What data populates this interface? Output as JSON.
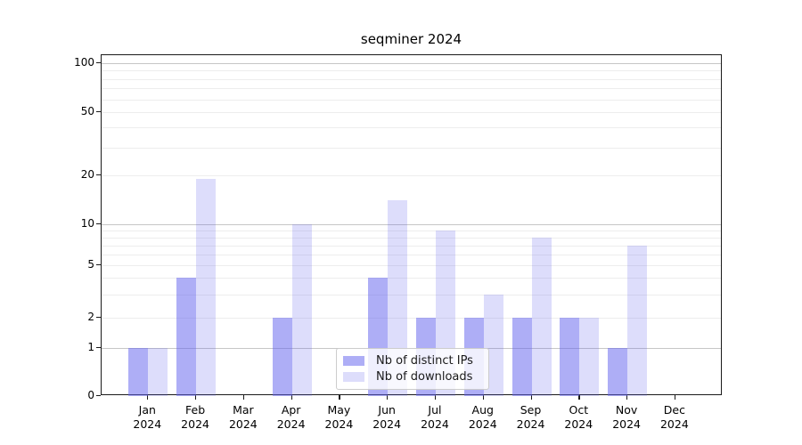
{
  "title": "seqminer 2024",
  "chart_data": {
    "type": "bar",
    "title": "seqminer 2024",
    "categories": [
      "Jan 2024",
      "Feb 2024",
      "Mar 2024",
      "Apr 2024",
      "May 2024",
      "Jun 2024",
      "Jul 2024",
      "Aug 2024",
      "Sep 2024",
      "Oct 2024",
      "Nov 2024",
      "Dec 2024"
    ],
    "series": [
      {
        "name": "Nb of distinct IPs",
        "values": [
          1,
          4,
          0,
          2,
          0,
          4,
          2,
          2,
          2,
          2,
          1,
          0
        ],
        "color": "rgba(99,99,238,0.52)"
      },
      {
        "name": "Nb of downloads",
        "values": [
          1,
          19,
          0,
          10,
          0,
          14,
          9,
          3,
          8,
          2,
          7,
          0
        ],
        "color": "rgba(99,99,238,0.22)"
      }
    ],
    "yscale": "log-like",
    "ylim": [
      0,
      100
    ],
    "yticks": [
      0,
      1,
      2,
      5,
      10,
      20,
      50,
      100
    ],
    "ytick_labels": [
      "0",
      "1",
      "2",
      "5",
      "10",
      "20",
      "50",
      "100"
    ],
    "grid": "horizontal",
    "legend_position": "lower-center",
    "colors": {
      "axis": "#1a1a1a",
      "major_grid": "#c6c6c6",
      "minor_grid": "#ededed",
      "background": "#ffffff"
    }
  }
}
